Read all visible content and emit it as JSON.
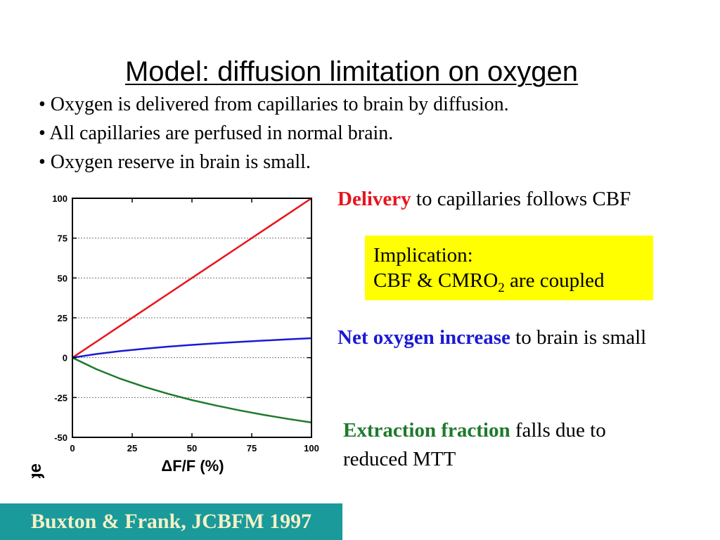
{
  "slide": {
    "title": "Model: diffusion limitation on oxygen",
    "bullets": [
      "• Oxygen is delivered from capillaries to brain by diffusion.",
      "• All capillaries are perfused in normal brain.",
      "• Oxygen reserve in brain is small."
    ],
    "delivery": {
      "highlight": "Delivery",
      "rest": " to capillaries follows CBF"
    },
    "implication": {
      "line1": "Implication:",
      "line2_pre": "CBF & CMRO",
      "line2_sub": "2",
      "line2_post": " are coupled"
    },
    "net_oxygen": {
      "highlight": "Net oxygen increase",
      "rest": " to brain is small"
    },
    "extraction": {
      "highlight": "Extraction fraction",
      "rest": " falls due to reduced MTT"
    },
    "citation": "Buxton & Frank, JCBFM 1997"
  },
  "colors": {
    "red": "#e8141e",
    "blue": "#1a1ad4",
    "green": "#1e7a2c",
    "yellow_box": "#ffff00",
    "citation_bg": "#1a9a9a",
    "citation_text": "#f4f0c8"
  },
  "chart_data": {
    "type": "line",
    "xlabel": "ΔF/F (%)",
    "ylabel": "% change",
    "xlim": [
      0,
      100
    ],
    "ylim": [
      -50,
      100
    ],
    "x_ticks": [
      "0",
      "25",
      "50",
      "75",
      "100"
    ],
    "y_ticks": [
      "100",
      "75",
      "50",
      "25",
      "0",
      "-25",
      "-50"
    ],
    "grid": "horizontal dashed",
    "x": [
      0,
      10,
      20,
      30,
      40,
      50,
      60,
      70,
      80,
      90,
      100
    ],
    "series": [
      {
        "color": "#e8141e",
        "values": [
          0,
          10,
          20,
          30,
          40,
          50,
          60,
          70,
          80,
          90,
          100
        ]
      },
      {
        "color": "#1a1ad4",
        "values": [
          0,
          2.3,
          4.1,
          5.6,
          6.9,
          8.0,
          9.0,
          9.9,
          10.7,
          11.5,
          12.2
        ]
      },
      {
        "color": "#1e7a2c",
        "values": [
          0,
          -7.2,
          -13.2,
          -18.3,
          -22.7,
          -26.6,
          -30.0,
          -33.1,
          -35.9,
          -38.4,
          -40.7
        ]
      }
    ]
  }
}
